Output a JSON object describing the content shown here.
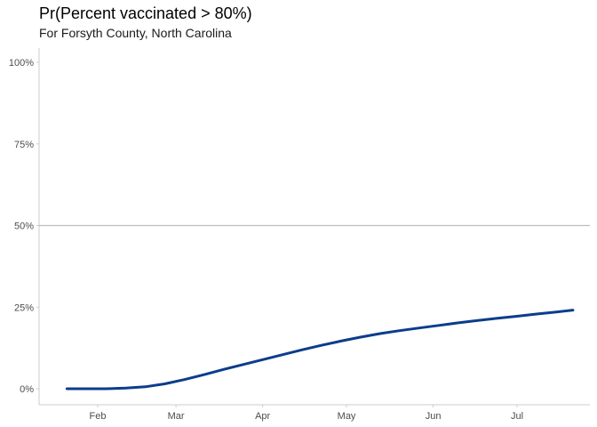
{
  "chart_data": {
    "type": "line",
    "title": "Pr(Percent vaccinated > 80%)",
    "subtitle": "For Forsyth County, North Carolina",
    "xlabel": "",
    "ylabel": "",
    "x_ticks": [
      "Feb",
      "Mar",
      "Apr",
      "May",
      "Jun",
      "Jul"
    ],
    "y_ticks": [
      "0%",
      "25%",
      "50%",
      "75%",
      "100%"
    ],
    "ylim": [
      0,
      1
    ],
    "reference_line": 0.5,
    "grid": false,
    "series": [
      {
        "color": "#0b3d8c",
        "x": [
          "2021-01-21",
          "2021-01-28",
          "2021-02-04",
          "2021-02-11",
          "2021-02-18",
          "2021-02-25",
          "2021-03-04",
          "2021-03-11",
          "2021-03-18",
          "2021-03-25",
          "2021-04-01",
          "2021-04-08",
          "2021-04-15",
          "2021-04-22",
          "2021-04-29",
          "2021-05-06",
          "2021-05-13",
          "2021-05-20",
          "2021-05-27",
          "2021-06-03",
          "2021-06-10",
          "2021-06-17",
          "2021-06-24",
          "2021-07-01",
          "2021-07-08",
          "2021-07-15",
          "2021-07-21"
        ],
        "y": [
          0.0,
          0.0,
          0.0,
          0.002,
          0.006,
          0.015,
          0.028,
          0.043,
          0.059,
          0.074,
          0.089,
          0.104,
          0.119,
          0.133,
          0.146,
          0.158,
          0.169,
          0.178,
          0.186,
          0.194,
          0.202,
          0.209,
          0.216,
          0.222,
          0.229,
          0.235,
          0.241
        ]
      }
    ]
  }
}
